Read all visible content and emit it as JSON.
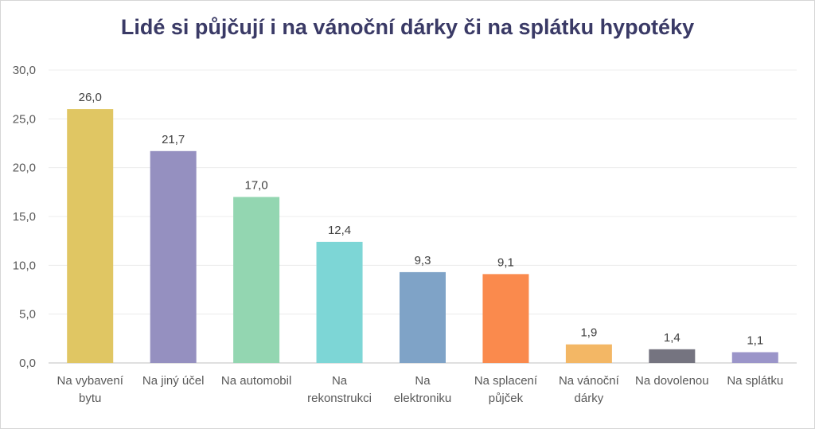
{
  "chart_data": {
    "type": "bar",
    "title": "Lidé si půjčují i na vánoční dárky či na splátku hypotéky",
    "xlabel": "",
    "ylabel": "",
    "ylim": [
      0,
      30
    ],
    "y_ticks": [
      "0,0",
      "5,0",
      "10,0",
      "15,0",
      "20,0",
      "25,0",
      "30,0"
    ],
    "grid": true,
    "categories": [
      [
        "Na vybavení",
        "bytu"
      ],
      [
        "Na jiný účel"
      ],
      [
        "Na automobil"
      ],
      [
        "Na",
        "rekonstrukci"
      ],
      [
        "Na",
        "elektroniku"
      ],
      [
        "Na splacení",
        "půjček"
      ],
      [
        "Na vánoční",
        "dárky"
      ],
      [
        "Na dovolenou"
      ],
      [
        "Na splátku"
      ]
    ],
    "values": [
      26.0,
      21.7,
      17.0,
      12.4,
      9.3,
      9.1,
      1.9,
      1.4,
      1.1
    ],
    "data_labels": [
      "26,0",
      "21,7",
      "17,0",
      "12,4",
      "9,3",
      "9,1",
      "1,9",
      "1,4",
      "1,1"
    ],
    "colors": [
      "#e0c663",
      "#9590c0",
      "#93d6b1",
      "#7dd6d6",
      "#7fa3c7",
      "#fa8a4d",
      "#f3b765",
      "#757480",
      "#9b95c9"
    ]
  }
}
